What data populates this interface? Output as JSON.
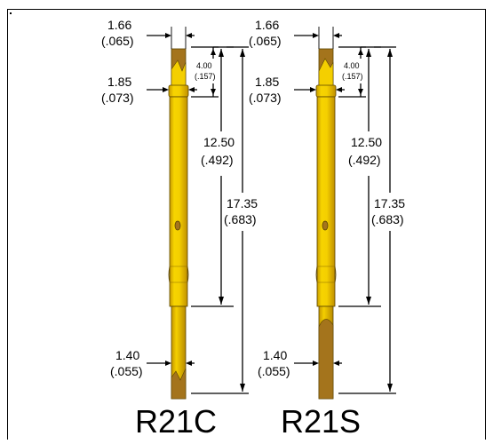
{
  "colors": {
    "pin_gold": "#f4cf00",
    "pin_dark": "#b8860b",
    "tip_brown": "#a4741c",
    "outline": "#5a4400",
    "frame": "#000000"
  },
  "pins": [
    {
      "name": "R21C",
      "tip_style": "crown",
      "dims": {
        "top_width": {
          "mm": "1.66",
          "in": "(.065)"
        },
        "collar_width": {
          "mm": "1.85",
          "in": "(.073)"
        },
        "collar_offset": {
          "mm": "4.00",
          "in": "(.157)"
        },
        "barrel_length": {
          "mm": "12.50",
          "in": "(.492)"
        },
        "total_length": {
          "mm": "17.35",
          "in": "(.683)"
        },
        "plunger_width": {
          "mm": "1.40",
          "in": "(.055)"
        }
      }
    },
    {
      "name": "R21S",
      "tip_style": "spear",
      "dims": {
        "top_width": {
          "mm": "1.66",
          "in": "(.065)"
        },
        "collar_width": {
          "mm": "1.85",
          "in": "(.073)"
        },
        "collar_offset": {
          "mm": "4.00",
          "in": "(.157)"
        },
        "barrel_length": {
          "mm": "12.50",
          "in": "(.492)"
        },
        "total_length": {
          "mm": "17.35",
          "in": "(.683)"
        },
        "plunger_width": {
          "mm": "1.40",
          "in": "(.055)"
        }
      }
    }
  ]
}
